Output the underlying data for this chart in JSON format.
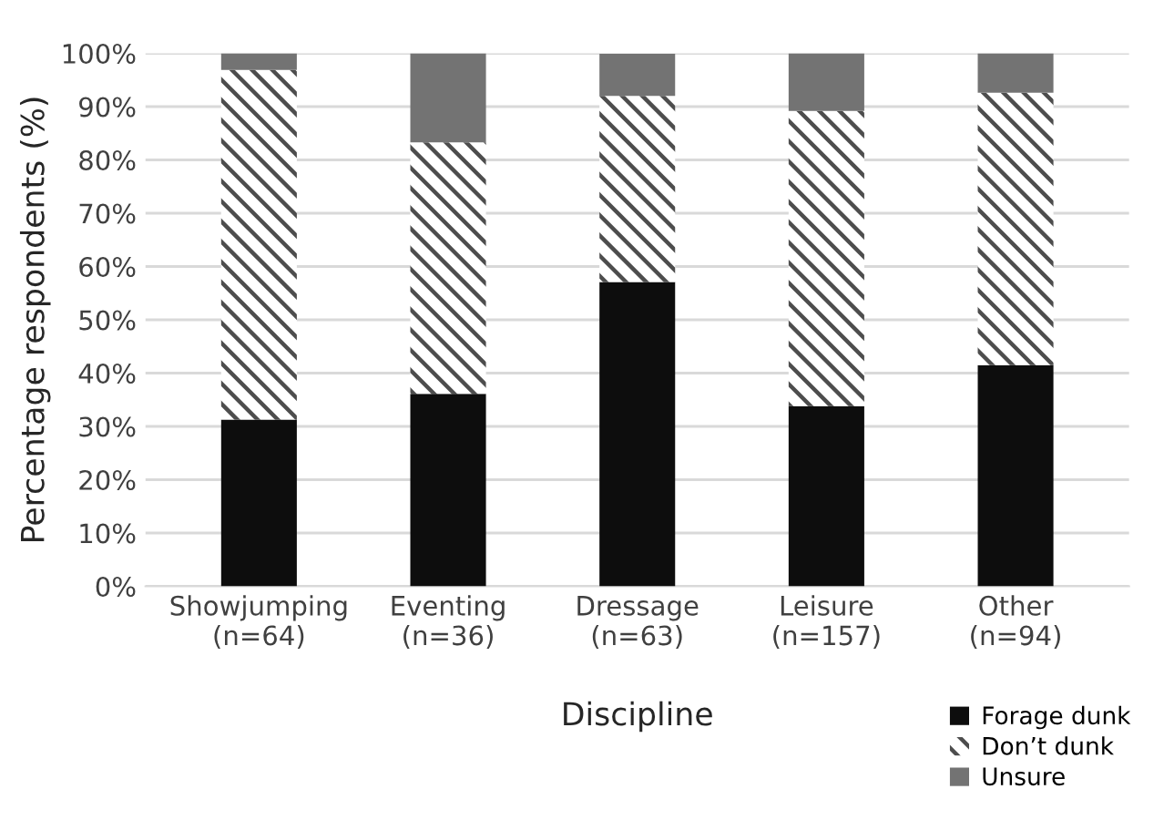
{
  "chart_data": {
    "type": "bar",
    "stacked": true,
    "xlabel": "Discipline",
    "ylabel": "Percentage respondents (%)",
    "categories": [
      "Showjumping\n(n=64)",
      "Eventing\n(n=36)",
      "Dressage\n(n=63)",
      "Leisure\n(n=157)",
      "Other\n(n=94)"
    ],
    "series": [
      {
        "name": "Forage dunk",
        "color": "#0d0d0d",
        "values": [
          31.3,
          36.1,
          57.1,
          33.8,
          41.5
        ]
      },
      {
        "name": "Don’t dunk",
        "color": "#ffffff",
        "values": [
          65.6,
          47.2,
          34.9,
          55.4,
          51.1
        ]
      },
      {
        "name": "Unsure",
        "color": "#737373",
        "values": [
          3.1,
          16.7,
          7.9,
          10.8,
          7.4
        ]
      }
    ],
    "ylim": [
      0,
      100
    ],
    "yticks": [
      {
        "value": 0,
        "label": "0%"
      },
      {
        "value": 10,
        "label": "10%"
      },
      {
        "value": 20,
        "label": "20%"
      },
      {
        "value": 30,
        "label": "30%"
      },
      {
        "value": 40,
        "label": "40%"
      },
      {
        "value": 50,
        "label": "50%"
      },
      {
        "value": 60,
        "label": "60%"
      },
      {
        "value": 70,
        "label": "70%"
      },
      {
        "value": 80,
        "label": "80%"
      },
      {
        "value": 90,
        "label": "90%"
      },
      {
        "value": 100,
        "label": "100%"
      }
    ],
    "grid": "y",
    "legend": "bottom right"
  }
}
